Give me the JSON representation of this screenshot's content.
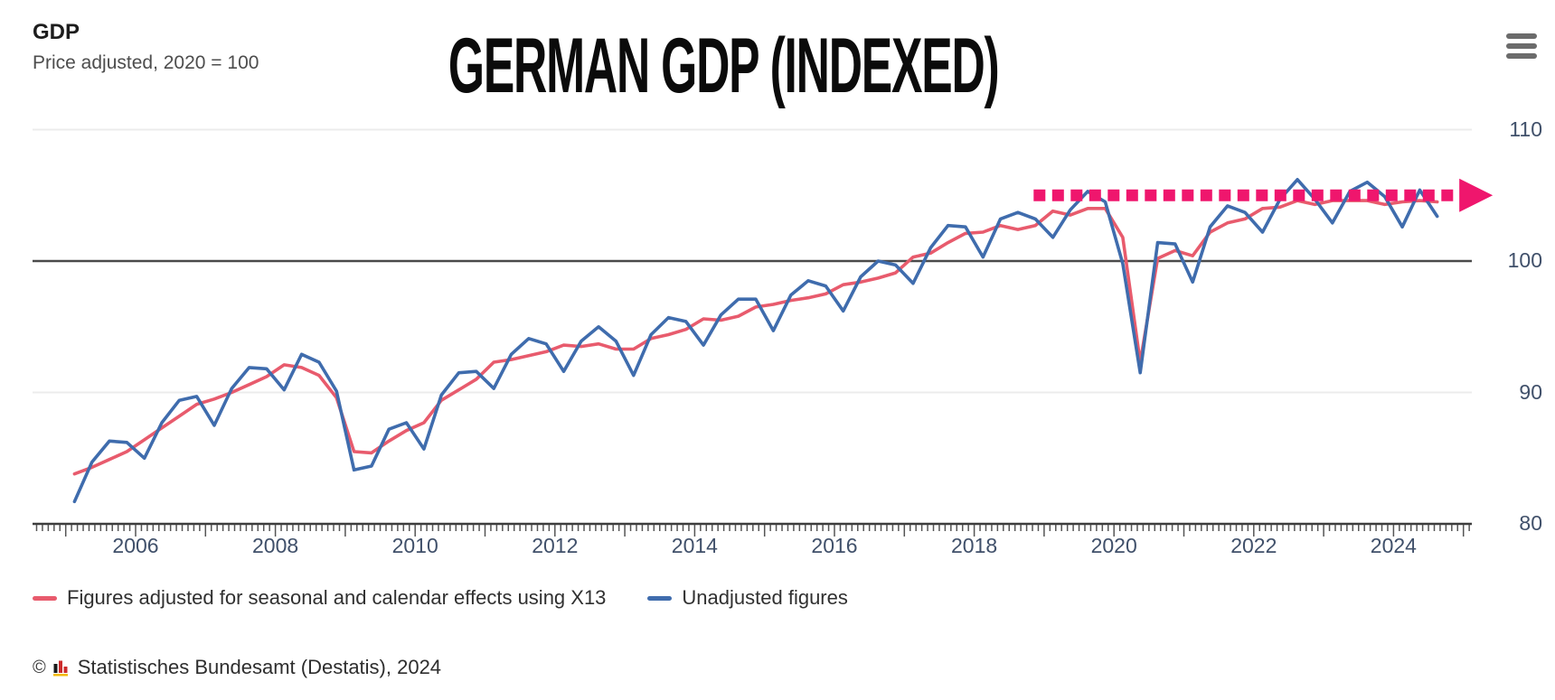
{
  "header": {
    "title": "GDP",
    "subtitle": "Price adjusted, 2020 = 100"
  },
  "overlay_title": "GERMAN GDP (INDEXED)",
  "menu": {
    "icon": "hamburger-menu-icon"
  },
  "chart_data": {
    "type": "line",
    "title": "GDP",
    "subtitle": "Price adjusted, 2020 = 100",
    "x_start": 2005.125,
    "x_step": 0.25,
    "xlim": [
      2004.55,
      2025.15
    ],
    "ylim": [
      80,
      111
    ],
    "y_ticks": [
      80,
      90,
      100,
      110
    ],
    "x_tick_labels": [
      2006,
      2008,
      2010,
      2012,
      2014,
      2016,
      2018,
      2020,
      2022,
      2024
    ],
    "baseline_value": 100,
    "grid": "horizontal",
    "legend_position": "bottom-left",
    "series": [
      {
        "name": "Figures adjusted for seasonal and calendar effects using X13",
        "color": "#e85b6d",
        "values": [
          83.8,
          84.3,
          84.9,
          85.5,
          86.4,
          87.3,
          88.2,
          89.1,
          89.5,
          90.0,
          90.6,
          91.2,
          92.1,
          91.9,
          91.3,
          89.6,
          85.5,
          85.4,
          86.3,
          87.1,
          87.7,
          89.4,
          90.2,
          91.0,
          92.3,
          92.5,
          92.8,
          93.1,
          93.6,
          93.5,
          93.7,
          93.3,
          93.3,
          94.1,
          94.4,
          94.8,
          95.6,
          95.5,
          95.8,
          96.5,
          96.7,
          97.0,
          97.2,
          97.5,
          98.2,
          98.4,
          98.7,
          99.1,
          100.3,
          100.6,
          101.4,
          102.1,
          102.2,
          102.7,
          102.4,
          102.7,
          103.8,
          103.5,
          104.0,
          104.0,
          101.8,
          92.3,
          100.2,
          100.8,
          100.4,
          102.2,
          102.9,
          103.2,
          104.0,
          104.1,
          104.6,
          104.3,
          104.6,
          104.6,
          104.6,
          104.3,
          104.5,
          104.6,
          104.5
        ]
      },
      {
        "name": "Unadjusted figures",
        "color": "#3f6cad",
        "values": [
          81.7,
          84.7,
          86.3,
          86.2,
          85.0,
          87.7,
          89.4,
          89.7,
          87.5,
          90.3,
          91.9,
          91.8,
          90.2,
          92.9,
          92.3,
          90.1,
          84.1,
          84.4,
          87.2,
          87.7,
          85.7,
          89.8,
          91.5,
          91.6,
          90.3,
          92.9,
          94.1,
          93.7,
          91.6,
          93.9,
          95.0,
          93.9,
          91.3,
          94.4,
          95.7,
          95.4,
          93.6,
          95.9,
          97.1,
          97.1,
          94.7,
          97.4,
          98.5,
          98.1,
          96.2,
          98.8,
          100.0,
          99.7,
          98.3,
          101.0,
          102.7,
          102.6,
          100.3,
          103.2,
          103.7,
          103.2,
          101.8,
          103.9,
          105.3,
          104.5,
          99.8,
          91.5,
          101.4,
          101.3,
          98.4,
          102.6,
          104.2,
          103.7,
          102.2,
          104.7,
          106.2,
          104.7,
          102.9,
          105.3,
          106.0,
          104.9,
          102.6,
          105.4,
          103.4
        ]
      }
    ],
    "annotation": {
      "type": "dotted-arrow",
      "y_value": 105,
      "x_from": 2018.85,
      "x_to": 2025.42,
      "color": "#ef166d"
    }
  },
  "legend": {
    "items": [
      {
        "label": "Figures adjusted for seasonal and calendar effects using X13",
        "color": "#e85b6d"
      },
      {
        "label": "Unadjusted figures",
        "color": "#3f6cad"
      }
    ]
  },
  "source": {
    "copyright": "©",
    "logo": "destatis-bar-chart-icon",
    "publisher": "Statistisches Bundesamt (Destatis), 2024"
  }
}
